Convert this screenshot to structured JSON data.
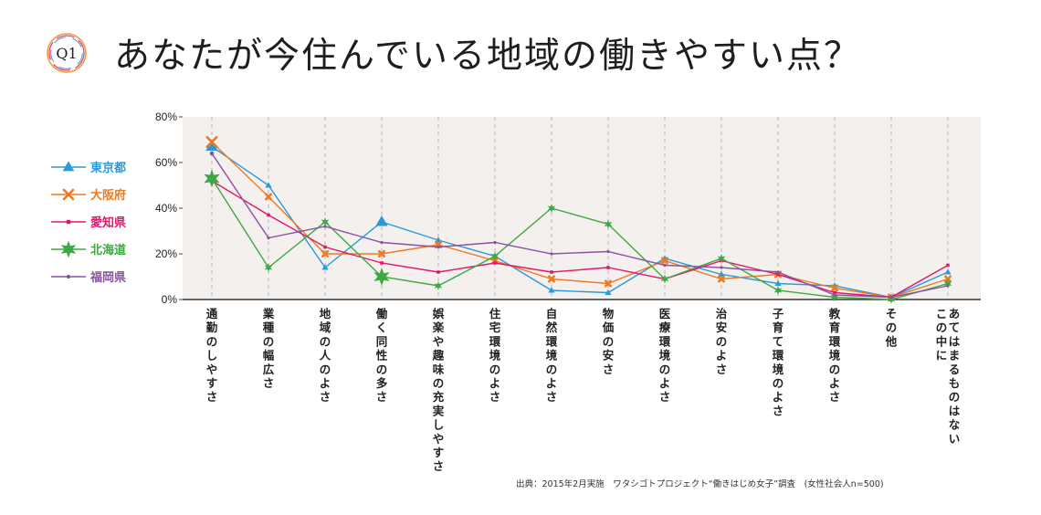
{
  "header": {
    "badge": "Q1",
    "title": "あなたが今住んでいる地域の働きやすい点？"
  },
  "source": "出典：2015年2月実施　ワタシゴトプロジェクト“働きはじめ女子”調査　(女性社会人n=500)",
  "chart_data": {
    "type": "line",
    "title": "あなたが今住んでいる地域の働きやすい点？",
    "ylim": [
      0,
      80
    ],
    "y_ticks": [
      "0%",
      "20%",
      "40%",
      "60%",
      "80%"
    ],
    "grid": "vertical dashed",
    "legend_position": "left",
    "categories": [
      "通勤のしやすさ",
      "業種の幅広さ",
      "地域の人のよさ",
      "働く同性の多さ",
      "娯楽や趣味の充実しやすさ",
      "住宅環境のよさ",
      "自然環境のよさ",
      "物価の安さ",
      "医療環境のよさ",
      "治安のよさ",
      "子育て環境のよさ",
      "教育環境のよさ",
      "その他",
      "この中に\nあてはまるものはない"
    ],
    "series": [
      {
        "name": "東京都",
        "color": "#2a9bd8",
        "marker": "triangle",
        "values": [
          67,
          50,
          14,
          34,
          26,
          19,
          4,
          3,
          18,
          11,
          7,
          6,
          1,
          12
        ]
      },
      {
        "name": "大阪府",
        "color": "#ee7a22",
        "marker": "x",
        "values": [
          69,
          45,
          20,
          20,
          24,
          17,
          9,
          7,
          17,
          9,
          11,
          5,
          1,
          9
        ]
      },
      {
        "name": "愛知県",
        "color": "#e3166e",
        "marker": "square",
        "values": [
          52,
          37,
          23,
          16,
          12,
          16,
          12,
          14,
          9,
          17,
          11,
          3,
          1,
          15
        ]
      },
      {
        "name": "北海道",
        "color": "#3ea843",
        "marker": "star",
        "values": [
          53,
          14,
          34,
          10,
          6,
          19,
          40,
          33,
          9,
          18,
          4,
          1,
          0,
          7
        ]
      },
      {
        "name": "福岡県",
        "color": "#8a52a4",
        "marker": "circle",
        "values": [
          64,
          27,
          32,
          25,
          23,
          25,
          20,
          21,
          15,
          14,
          12,
          2,
          1,
          6
        ]
      }
    ]
  }
}
